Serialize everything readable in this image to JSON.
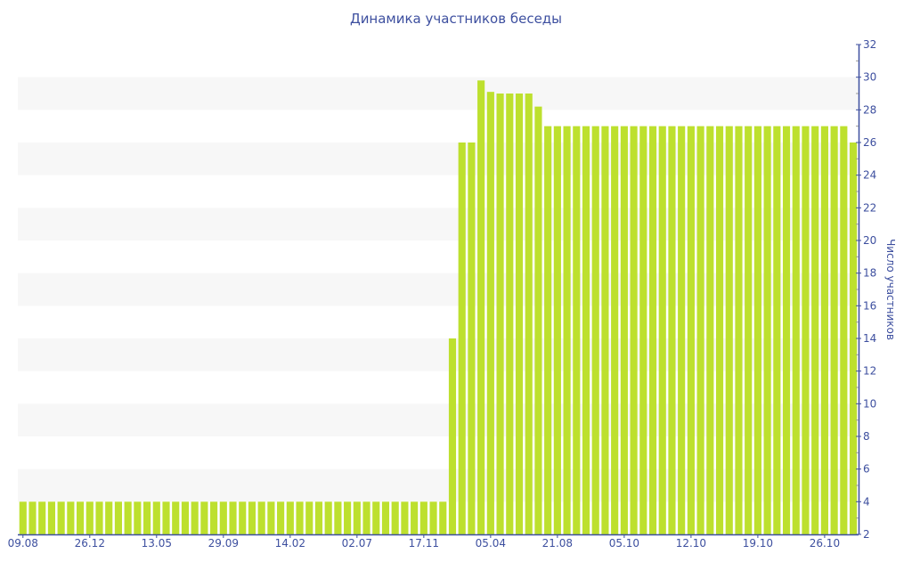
{
  "chart_data": {
    "type": "bar",
    "title": "Динамика участников беседы",
    "xlabel": "",
    "ylabel": "Число участников",
    "ylim": [
      2,
      32
    ],
    "yticks": [
      2,
      4,
      6,
      8,
      10,
      12,
      14,
      16,
      18,
      20,
      22,
      24,
      26,
      28,
      30,
      32
    ],
    "xtick_labels": [
      "09.08",
      "26.12",
      "13.05",
      "29.09",
      "14.02",
      "02.07",
      "17.11",
      "05.04",
      "21.08",
      "05.10",
      "12.10",
      "19.10",
      "26.10"
    ],
    "xtick_every": 7,
    "values": [
      4,
      4,
      4,
      4,
      4,
      4,
      4,
      4,
      4,
      4,
      4,
      4,
      4,
      4,
      4,
      4,
      4,
      4,
      4,
      4,
      4,
      4,
      4,
      4,
      4,
      4,
      4,
      4,
      4,
      4,
      4,
      4,
      4,
      4,
      4,
      4,
      4,
      4,
      4,
      4,
      4,
      4,
      4,
      4,
      4,
      14,
      26,
      26,
      29.8,
      29.1,
      29,
      29,
      29,
      29,
      28.2,
      27,
      27,
      27,
      27,
      27,
      27,
      27,
      27,
      27,
      27,
      27,
      27,
      27,
      27,
      27,
      27,
      27,
      27,
      27,
      27,
      27,
      27,
      27,
      27,
      27,
      27,
      27,
      27,
      27,
      27,
      27,
      27,
      26
    ],
    "bar_color": "#bde02e",
    "axis_color": "#3d4f9f",
    "band_color": "#f7f7f7",
    "grid": "alternating-bands"
  }
}
